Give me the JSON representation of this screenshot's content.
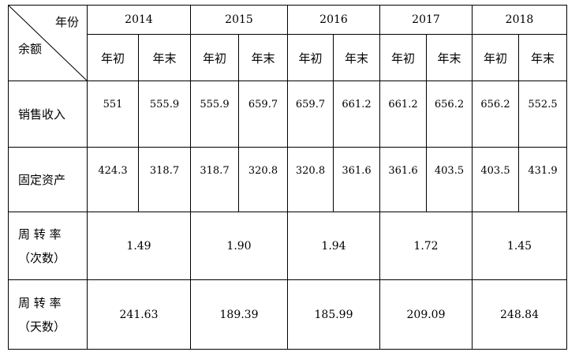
{
  "header": {
    "corner_top": "年份",
    "corner_bottom": "余额",
    "years": [
      "2014",
      "2015",
      "2016",
      "2017",
      "2018"
    ],
    "sub_labels": [
      [
        "年初",
        "年末"
      ],
      [
        "年初",
        "年末"
      ],
      [
        "年初",
        "年末"
      ],
      [
        "年初",
        "年末"
      ],
      [
        "年初",
        "年末"
      ]
    ]
  },
  "rows": [
    {
      "label": "销售收入",
      "values": [
        "551",
        "555.9",
        "555.9",
        "659.7",
        "659.7",
        "661.2",
        "661.2",
        "656.2",
        "656.2",
        "552.5"
      ]
    },
    {
      "label": "固定资产",
      "values": [
        "424.3",
        "318.7",
        "318.7",
        "320.8",
        "320.8",
        "361.6",
        "361.6",
        "403.5",
        "403.5",
        "431.9"
      ]
    }
  ],
  "turnover_rows": [
    {
      "label_lines": [
        "周 转 率",
        "（次数）"
      ],
      "values": [
        "1.49",
        "1.90",
        "1.94",
        "1.72",
        "1.45"
      ]
    },
    {
      "label_lines": [
        "周 转 率",
        "（天数）"
      ],
      "values": [
        "241.63",
        "189.39",
        "185.99",
        "209.09",
        "248.84"
      ]
    }
  ]
}
